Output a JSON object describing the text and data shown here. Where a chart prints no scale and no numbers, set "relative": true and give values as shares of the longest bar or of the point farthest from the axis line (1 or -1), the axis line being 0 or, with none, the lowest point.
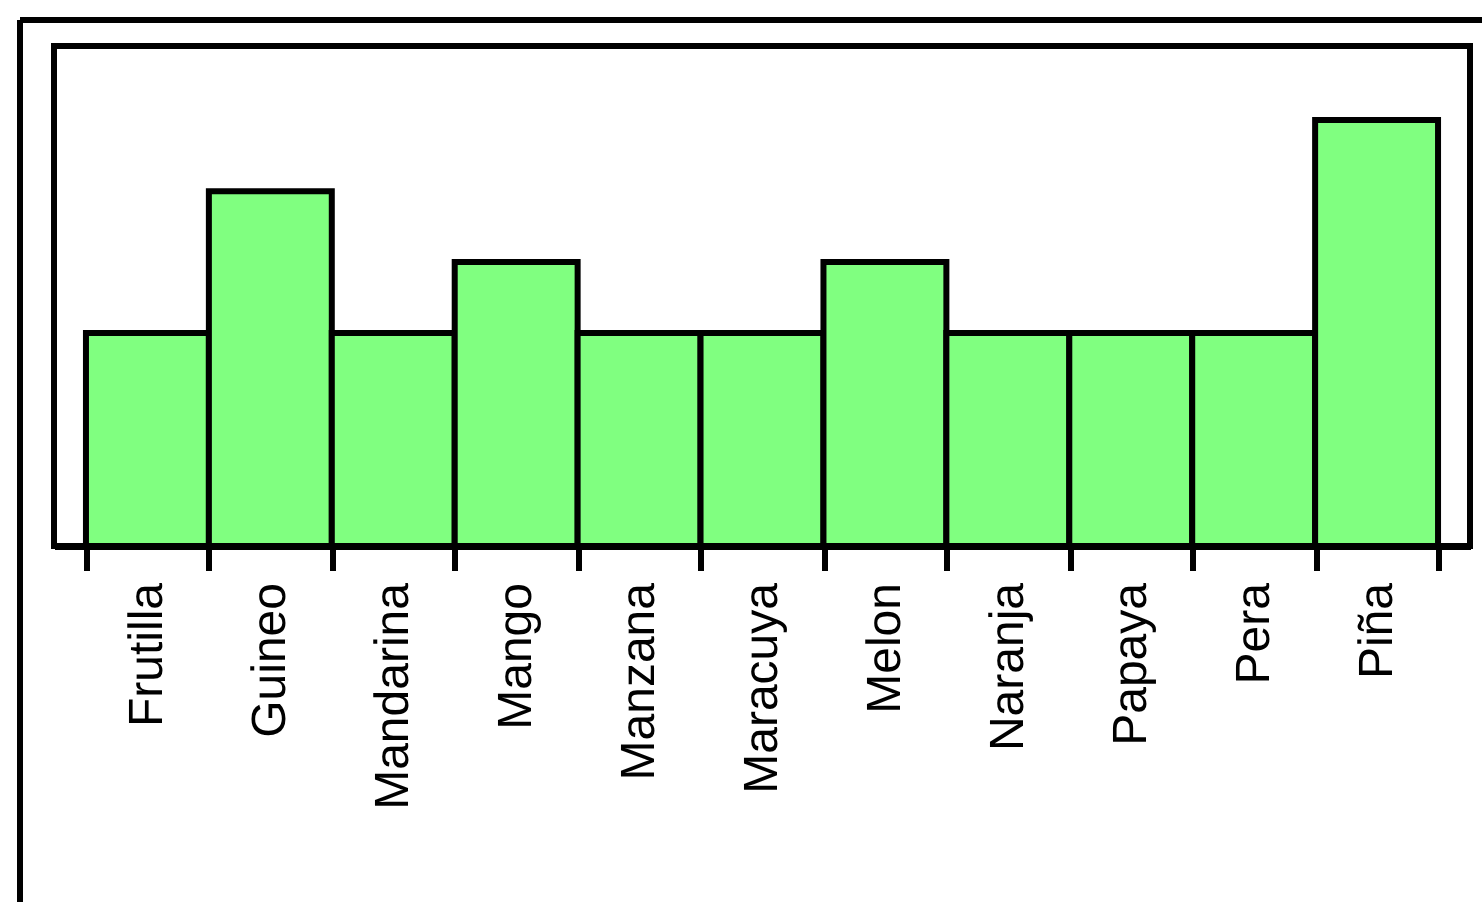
{
  "chart_data": {
    "type": "bar",
    "relative": true,
    "categories": [
      "Frutilla",
      "Guineo",
      "Mandarina",
      "Mango",
      "Manzana",
      "Maracuya",
      "Melon",
      "Naranja",
      "Papaya",
      "Pera",
      "Piña"
    ],
    "values": [
      0.5,
      0.833,
      0.5,
      0.667,
      0.5,
      0.5,
      0.667,
      0.5,
      0.5,
      0.5,
      1
    ],
    "color": "#80ff80",
    "grid": false
  }
}
